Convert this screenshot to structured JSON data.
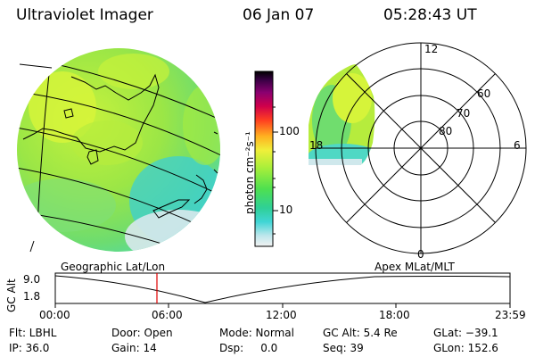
{
  "header": {
    "title": "Ultraviolet Imager",
    "date": "06 Jan 07",
    "time": "05:28:43 UT"
  },
  "colorbar": {
    "unit_label": "photon cm⁻²s⁻¹",
    "ticks": [
      "100",
      "10"
    ]
  },
  "polar_plot": {
    "mlt_labels": [
      "12",
      "18",
      "6",
      "0"
    ],
    "lat_labels": [
      "60",
      "70",
      "80"
    ]
  },
  "timeline": {
    "left_title": "Geographic Lat/Lon",
    "right_title": "Apex MLat/MLT",
    "axis_label": "GC Alt",
    "y_ticks": [
      "9.0",
      "1.8"
    ],
    "x_ticks": [
      "00:00",
      "06:00",
      "12:00",
      "18:00",
      "23:59"
    ]
  },
  "info": {
    "flt": "Flt: LBHL",
    "ip": "IP: 36.0",
    "door": "Door: Open",
    "gain": "Gain: 14",
    "mode": "Mode: Normal",
    "dsp": "Dsp:     0.0",
    "gcalt": "GC Alt: 5.4 Re",
    "seq": "Seq: 39",
    "glat": "GLat: −39.1",
    "glon": "GLon: 152.6"
  }
}
